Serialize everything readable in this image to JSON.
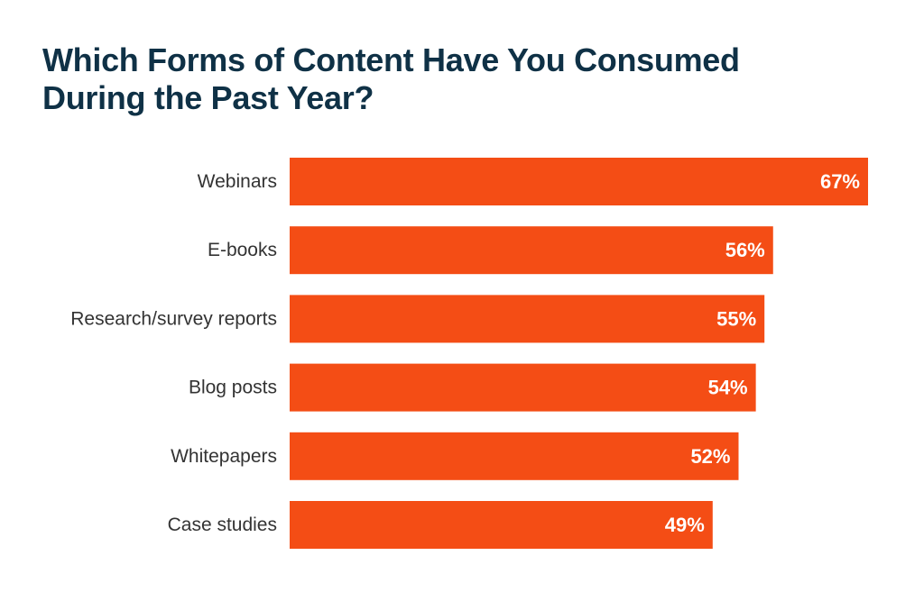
{
  "colors": {
    "title": "#0f3146",
    "bar": "#f44d15",
    "category_label": "#333333",
    "value_label": "#ffffff"
  },
  "chart_data": {
    "type": "bar",
    "orientation": "horizontal",
    "title_lines": [
      "Which Forms of Content Have You Consumed",
      "During the Past Year?"
    ],
    "categories": [
      "Webinars",
      "E-books",
      "Research/survey reports",
      "Blog posts",
      "Whitepapers",
      "Case studies"
    ],
    "values": [
      67,
      56,
      55,
      54,
      52,
      49
    ],
    "value_labels": [
      "67%",
      "56%",
      "55%",
      "54%",
      "52%",
      "49%"
    ],
    "value_unit": "%",
    "xlim": [
      0,
      67
    ],
    "grid": false,
    "legend": "none"
  }
}
